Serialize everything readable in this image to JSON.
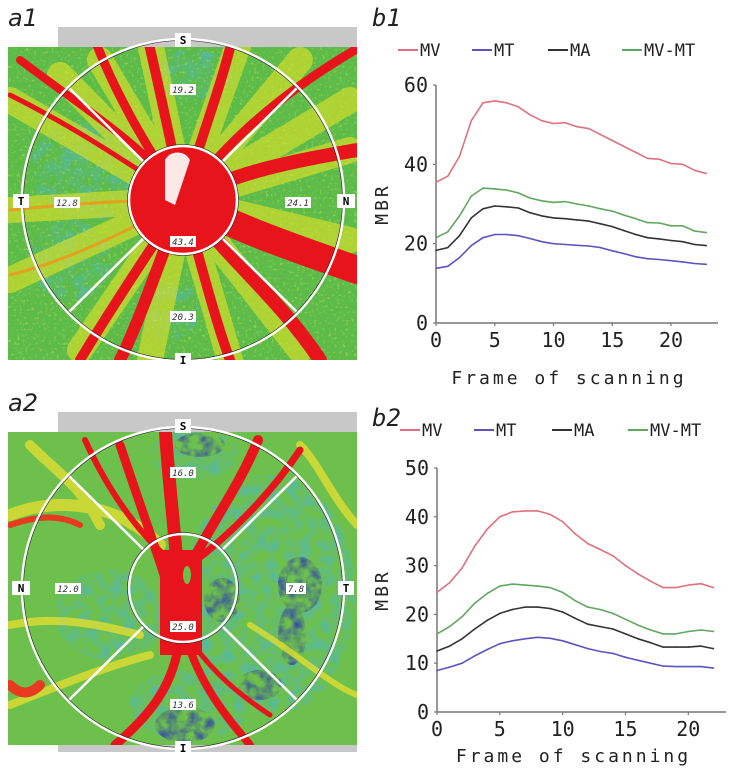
{
  "figure": {
    "panels": [
      {
        "id": "a1",
        "label": "a1",
        "type": "fundus-map",
        "orientation": {
          "top": "S",
          "bottom": "I",
          "left": "T",
          "right": "N"
        },
        "sector_values": {
          "superior": "19.2",
          "temporal": "12.8",
          "nasal": "24.1",
          "inferior": "20.3",
          "center": "43.4"
        }
      },
      {
        "id": "a2",
        "label": "a2",
        "type": "fundus-map",
        "orientation": {
          "top": "S",
          "bottom": "I",
          "left": "N",
          "right": "T"
        },
        "sector_values": {
          "superior": "16.0",
          "temporal": "7.8",
          "nasal": "12.0",
          "inferior": "13.6",
          "center": "25.0"
        }
      }
    ],
    "colors": {
      "MV": "#e0707e",
      "MT": "#5b55c0",
      "MA": "#333333",
      "MV-MT": "#5fa85f",
      "axis": "#777777"
    }
  },
  "chart_data": [
    {
      "id": "b1",
      "label": "b1",
      "type": "line",
      "title": "",
      "xlabel": "Frame of scanning",
      "ylabel": "MBR",
      "xlim": [
        0,
        24
      ],
      "ylim": [
        0,
        60
      ],
      "xticks": [
        0,
        5,
        10,
        15,
        20
      ],
      "yticks": [
        0,
        20,
        40,
        60
      ],
      "grid": false,
      "legend": {
        "position": "top",
        "entries": [
          "MV",
          "MT",
          "MA",
          "MV-MT"
        ]
      },
      "x": [
        0,
        1,
        2,
        3,
        4,
        5,
        6,
        7,
        8,
        9,
        10,
        11,
        12,
        13,
        14,
        15,
        16,
        17,
        18,
        19,
        20,
        21,
        22,
        23
      ],
      "series": [
        {
          "name": "MV",
          "values": [
            35.5,
            37,
            42,
            51,
            55.5,
            56,
            55.5,
            54.5,
            52.5,
            51,
            50.3,
            50.5,
            49.5,
            49,
            47.5,
            46,
            44.5,
            43,
            41.5,
            41.3,
            40.2,
            40,
            38.5,
            37.7
          ]
        },
        {
          "name": "MT",
          "values": [
            13.8,
            14.3,
            16.5,
            19.5,
            21.5,
            22.3,
            22.3,
            22,
            21.3,
            20.5,
            20,
            19.8,
            19.6,
            19.4,
            19,
            18.2,
            17.5,
            16.7,
            16.2,
            16,
            15.7,
            15.4,
            15,
            14.8
          ]
        },
        {
          "name": "MA",
          "values": [
            18.3,
            19,
            22,
            26.5,
            28.8,
            29.5,
            29.3,
            29,
            27.8,
            27,
            26.5,
            26.3,
            26,
            25.7,
            25,
            24.3,
            23.3,
            22.3,
            21.5,
            21.2,
            20.8,
            20.5,
            19.8,
            19.5
          ]
        },
        {
          "name": "MV-MT",
          "values": [
            21.5,
            23,
            27,
            32,
            34,
            33.8,
            33.5,
            32.8,
            31.5,
            30.8,
            30.4,
            30.6,
            30,
            29.5,
            28.8,
            28.2,
            27.2,
            26.3,
            25.3,
            25.2,
            24.5,
            24.5,
            23.2,
            22.8
          ]
        }
      ]
    },
    {
      "id": "b2",
      "label": "b2",
      "type": "line",
      "title": "",
      "xlabel": "Frame of scanning",
      "ylabel": "MBR",
      "xlim": [
        0,
        23
      ],
      "ylim": [
        0,
        50
      ],
      "xticks": [
        0,
        5,
        10,
        15,
        20
      ],
      "yticks": [
        0,
        10,
        20,
        30,
        40,
        50
      ],
      "grid": false,
      "legend": {
        "position": "top",
        "entries": [
          "MV",
          "MT",
          "MA",
          "MV-MT"
        ]
      },
      "x": [
        0,
        1,
        2,
        3,
        4,
        5,
        6,
        7,
        8,
        9,
        10,
        11,
        12,
        13,
        14,
        15,
        16,
        17,
        18,
        19,
        20,
        21,
        22
      ],
      "series": [
        {
          "name": "MV",
          "values": [
            24.5,
            26.5,
            29.5,
            34,
            37.5,
            40,
            41,
            41.2,
            41.2,
            40.5,
            39,
            36.5,
            34.5,
            33.3,
            32,
            30,
            28.3,
            26.8,
            25.5,
            25.5,
            26,
            26.3,
            25.5
          ]
        },
        {
          "name": "MT",
          "values": [
            8.5,
            9.2,
            10,
            11.5,
            12.8,
            14,
            14.6,
            15,
            15.3,
            15.1,
            14.6,
            13.8,
            13,
            12.4,
            12,
            11.2,
            10.6,
            10,
            9.4,
            9.3,
            9.3,
            9.3,
            9
          ]
        },
        {
          "name": "MA",
          "values": [
            12.5,
            13.5,
            15,
            17,
            18.8,
            20.2,
            21,
            21.5,
            21.5,
            21.2,
            20.5,
            19.2,
            18,
            17.5,
            17,
            16,
            15,
            14.2,
            13.3,
            13.3,
            13.3,
            13.5,
            13
          ]
        },
        {
          "name": "MV-MT",
          "values": [
            16,
            17.5,
            19.5,
            22.3,
            24.3,
            25.8,
            26.2,
            26,
            25.8,
            25.5,
            24.5,
            22.8,
            21.5,
            21,
            20.2,
            19,
            17.8,
            16.8,
            16,
            16,
            16.5,
            16.8,
            16.5
          ]
        }
      ]
    }
  ]
}
